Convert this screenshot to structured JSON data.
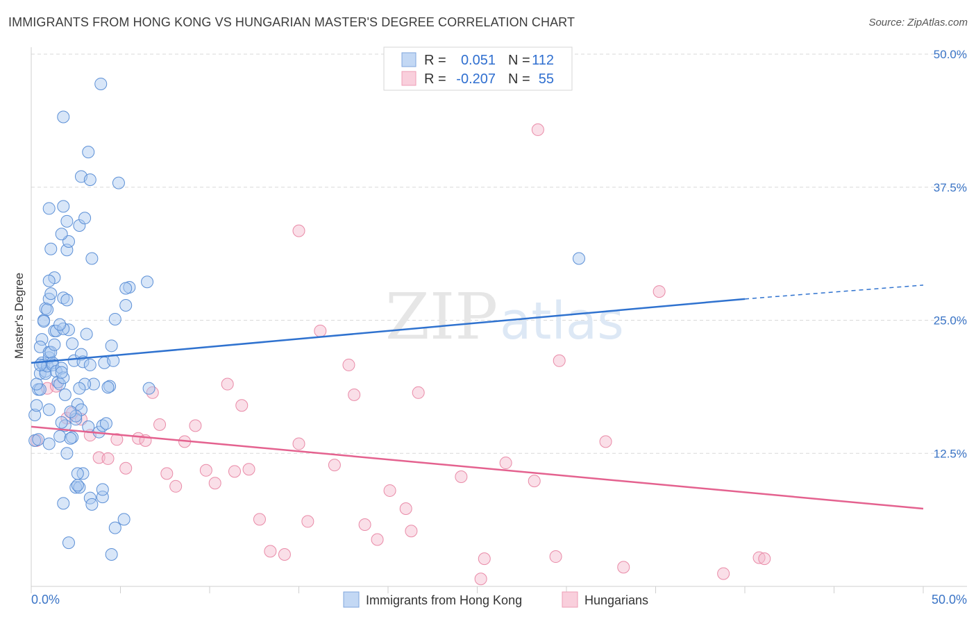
{
  "title": "IMMIGRANTS FROM HONG KONG VS HUNGARIAN MASTER'S DEGREE CORRELATION CHART",
  "source": "Source: ZipAtlas.com",
  "watermark": {
    "zip": "ZIP",
    "atlas": "atlas"
  },
  "colors": {
    "blue_fill": "#a9c8ef",
    "blue_stroke": "#5b8fd6",
    "blue_line": "#2f72cf",
    "pink_fill": "#f5b8cb",
    "pink_stroke": "#e98aa7",
    "pink_line": "#e4628f",
    "grid": "#d9d9d9",
    "tick_label": "#3a74c6"
  },
  "legend": {
    "rows": [
      {
        "r_label": "R =",
        "r_value": "0.051",
        "n_label": "N =",
        "n_value": "112"
      },
      {
        "r_label": "R =",
        "r_value": "-0.207",
        "n_label": "N =",
        "n_value": "55"
      }
    ]
  },
  "bottom_legend": [
    "Immigrants from Hong Kong",
    "Hungarians"
  ],
  "chart_data": {
    "type": "scatter",
    "title": "IMMIGRANTS FROM HONG KONG VS HUNGARIAN MASTER'S DEGREE CORRELATION CHART",
    "xlabel": "",
    "ylabel": "Master's Degree",
    "xlim": [
      0,
      50
    ],
    "ylim": [
      0,
      50
    ],
    "x_tick_labels": [
      "0.0%",
      "50.0%"
    ],
    "y_ticks": [
      12.5,
      25.0,
      37.5,
      50.0
    ],
    "y_tick_labels": [
      "12.5%",
      "25.0%",
      "37.5%",
      "50.0%"
    ],
    "series": [
      {
        "name": "Immigrants from Hong Kong",
        "color": "#a9c8ef",
        "trend": {
          "x0": 0,
          "y0": 21.0,
          "x1": 40,
          "y1": 27.0,
          "dashed_to_x": 50,
          "dashed_to_y": 28.3
        },
        "points": [
          [
            0.2,
            13.7
          ],
          [
            0.4,
            13.8
          ],
          [
            0.2,
            16.1
          ],
          [
            0.3,
            17.0
          ],
          [
            0.4,
            18.5
          ],
          [
            0.5,
            18.5
          ],
          [
            0.5,
            20.0
          ],
          [
            0.6,
            21.0
          ],
          [
            0.6,
            23.2
          ],
          [
            0.5,
            22.5
          ],
          [
            0.8,
            20.2
          ],
          [
            0.7,
            20.8
          ],
          [
            0.8,
            20.0
          ],
          [
            0.9,
            20.7
          ],
          [
            1.0,
            21.5
          ],
          [
            1.0,
            22.0
          ],
          [
            1.1,
            22.0
          ],
          [
            1.2,
            21.0
          ],
          [
            1.3,
            22.7
          ],
          [
            1.2,
            20.8
          ],
          [
            1.4,
            20.2
          ],
          [
            1.5,
            19.2
          ],
          [
            1.6,
            19.0
          ],
          [
            1.7,
            20.5
          ],
          [
            1.8,
            19.6
          ],
          [
            1.9,
            18.0
          ],
          [
            1.3,
            24.0
          ],
          [
            1.4,
            24.0
          ],
          [
            0.7,
            25.0
          ],
          [
            0.7,
            24.9
          ],
          [
            0.8,
            26.1
          ],
          [
            0.9,
            26.0
          ],
          [
            1.0,
            27.0
          ],
          [
            1.1,
            27.5
          ],
          [
            1.3,
            29.0
          ],
          [
            1.8,
            27.1
          ],
          [
            2.0,
            26.9
          ],
          [
            1.0,
            28.7
          ],
          [
            2.1,
            24.1
          ],
          [
            1.8,
            24.2
          ],
          [
            1.6,
            24.6
          ],
          [
            2.3,
            22.8
          ],
          [
            2.4,
            21.2
          ],
          [
            2.8,
            21.8
          ],
          [
            2.9,
            21.1
          ],
          [
            3.1,
            23.7
          ],
          [
            3.3,
            20.8
          ],
          [
            3.5,
            19.0
          ],
          [
            3.0,
            19.0
          ],
          [
            2.7,
            18.6
          ],
          [
            2.6,
            17.1
          ],
          [
            2.8,
            16.6
          ],
          [
            2.5,
            15.7
          ],
          [
            3.2,
            15.0
          ],
          [
            3.8,
            14.5
          ],
          [
            4.0,
            15.1
          ],
          [
            4.2,
            15.3
          ],
          [
            4.4,
            18.8
          ],
          [
            4.3,
            18.7
          ],
          [
            4.1,
            21.0
          ],
          [
            4.6,
            21.2
          ],
          [
            4.5,
            22.6
          ],
          [
            4.7,
            25.1
          ],
          [
            5.3,
            26.4
          ],
          [
            5.5,
            28.1
          ],
          [
            5.3,
            28.0
          ],
          [
            6.5,
            28.6
          ],
          [
            6.6,
            18.6
          ],
          [
            3.4,
            30.8
          ],
          [
            2.0,
            31.6
          ],
          [
            2.1,
            32.4
          ],
          [
            1.1,
            31.7
          ],
          [
            1.7,
            33.1
          ],
          [
            2.0,
            34.3
          ],
          [
            2.7,
            33.9
          ],
          [
            3.0,
            34.6
          ],
          [
            1.0,
            35.5
          ],
          [
            1.8,
            35.7
          ],
          [
            2.8,
            38.5
          ],
          [
            3.3,
            38.2
          ],
          [
            4.9,
            37.9
          ],
          [
            3.2,
            40.8
          ],
          [
            1.8,
            44.1
          ],
          [
            3.9,
            47.2
          ],
          [
            2.0,
            12.5
          ],
          [
            1.6,
            14.1
          ],
          [
            2.3,
            14.0
          ],
          [
            2.2,
            13.9
          ],
          [
            1.0,
            13.4
          ],
          [
            1.9,
            15.1
          ],
          [
            1.7,
            15.4
          ],
          [
            1.0,
            16.6
          ],
          [
            2.5,
            16.0
          ],
          [
            2.9,
            10.6
          ],
          [
            2.6,
            10.6
          ],
          [
            2.5,
            9.3
          ],
          [
            2.7,
            9.3
          ],
          [
            2.6,
            9.5
          ],
          [
            3.3,
            8.3
          ],
          [
            4.0,
            8.4
          ],
          [
            4.0,
            9.1
          ],
          [
            1.8,
            7.8
          ],
          [
            3.4,
            7.7
          ],
          [
            5.2,
            6.3
          ],
          [
            4.7,
            5.5
          ],
          [
            2.1,
            4.1
          ],
          [
            4.5,
            3.0
          ],
          [
            0.3,
            19.0
          ],
          [
            1.7,
            20.1
          ],
          [
            2.2,
            16.4
          ],
          [
            0.5,
            20.8
          ],
          [
            30.7,
            30.8
          ]
        ]
      },
      {
        "name": "Hungarians",
        "color": "#f5b8cb",
        "trend": {
          "x0": 0,
          "y0": 15.0,
          "x1": 50,
          "y1": 7.3
        },
        "points": [
          [
            0.3,
            13.7
          ],
          [
            0.9,
            18.6
          ],
          [
            1.4,
            18.8
          ],
          [
            2.0,
            15.8
          ],
          [
            2.3,
            16.3
          ],
          [
            2.8,
            15.7
          ],
          [
            3.3,
            14.2
          ],
          [
            3.8,
            12.1
          ],
          [
            4.3,
            12.0
          ],
          [
            4.8,
            13.8
          ],
          [
            5.3,
            11.1
          ],
          [
            6.0,
            13.9
          ],
          [
            6.4,
            13.7
          ],
          [
            6.8,
            18.2
          ],
          [
            7.2,
            15.2
          ],
          [
            7.6,
            10.6
          ],
          [
            8.1,
            9.4
          ],
          [
            8.6,
            13.6
          ],
          [
            9.2,
            15.1
          ],
          [
            9.8,
            10.9
          ],
          [
            10.3,
            9.7
          ],
          [
            11.0,
            19.0
          ],
          [
            11.4,
            10.8
          ],
          [
            11.8,
            17.0
          ],
          [
            12.2,
            11.0
          ],
          [
            12.8,
            6.3
          ],
          [
            13.4,
            3.3
          ],
          [
            14.2,
            3.0
          ],
          [
            15.0,
            13.4
          ],
          [
            15.5,
            6.1
          ],
          [
            16.2,
            24.0
          ],
          [
            17.0,
            11.4
          ],
          [
            17.8,
            20.8
          ],
          [
            18.1,
            18.0
          ],
          [
            18.7,
            5.8
          ],
          [
            19.4,
            4.4
          ],
          [
            20.1,
            9.0
          ],
          [
            21.0,
            7.3
          ],
          [
            21.3,
            5.2
          ],
          [
            21.7,
            18.2
          ],
          [
            24.1,
            10.3
          ],
          [
            25.2,
            0.7
          ],
          [
            25.4,
            2.6
          ],
          [
            26.6,
            11.6
          ],
          [
            28.2,
            9.9
          ],
          [
            28.4,
            42.9
          ],
          [
            29.4,
            2.8
          ],
          [
            29.6,
            21.2
          ],
          [
            32.2,
            13.6
          ],
          [
            33.2,
            1.8
          ],
          [
            35.2,
            27.7
          ],
          [
            38.8,
            1.2
          ],
          [
            40.8,
            2.7
          ],
          [
            41.1,
            2.6
          ],
          [
            15.0,
            33.4
          ]
        ]
      }
    ]
  }
}
